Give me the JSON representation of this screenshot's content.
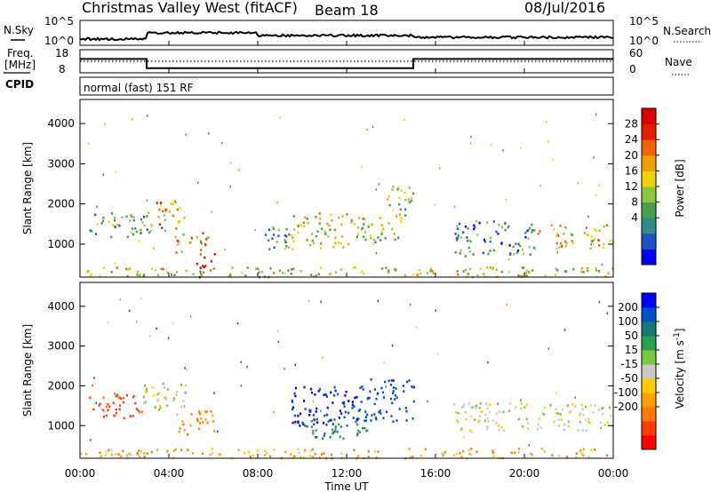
{
  "header": {
    "station": "Christmas Valley West (fitACF)",
    "beam": "Beam 18",
    "date": "08/Jul/2016"
  },
  "top_panels": {
    "nsky_label": "N.Sky",
    "nsky_ticks": [
      "10^5",
      "10^0"
    ],
    "nsearch_label": "N.Search",
    "nsearch_ticks": [
      "10^5",
      "10^0"
    ],
    "freq_label": [
      "Freq.",
      "[MHz]"
    ],
    "freq_ticks": [
      "18",
      "8"
    ],
    "nave_label": "Nave",
    "nave_ticks": [
      "60",
      "0"
    ],
    "cpid_label": "CPID",
    "cpid_text": "normal (fast) 151 RF"
  },
  "axes": {
    "ylabel": "Slant Range [km]",
    "yticks": [
      "4000",
      "3000",
      "2000",
      "1000"
    ],
    "xlabel": "Time UT",
    "xticks": [
      "00:00",
      "04:00",
      "08:00",
      "12:00",
      "16:00",
      "20:00",
      "00:00"
    ]
  },
  "colorbars": {
    "power": {
      "label": "Power [dB]",
      "ticks": [
        "28",
        "24",
        "20",
        "16",
        "12",
        "8",
        "4"
      ],
      "colors": [
        "#0000ff",
        "#1e50c8",
        "#2e8b8b",
        "#46a046",
        "#8cc83c",
        "#f0d200",
        "#f0a000",
        "#f06400",
        "#e61e00",
        "#dc0000"
      ]
    },
    "velocity": {
      "label": "Velocity [m s",
      "label_sup": "-1",
      "label_end": "]",
      "ticks": [
        "200",
        "100",
        "50",
        "15",
        "-15",
        "-50",
        "-100",
        "-200"
      ],
      "colors": [
        "#ff0000",
        "#ff3c00",
        "#ff7800",
        "#ffa000",
        "#ffcc00",
        "#c8c8c8",
        "#78c83c",
        "#28a050",
        "#147878",
        "#0050c8",
        "#0000ff"
      ]
    }
  },
  "chart_data": {
    "type": "heatmap",
    "title": "Christmas Valley West (fitACF) Beam 18 08/Jul/2016",
    "xlabel": "Time UT",
    "ylabel": "Slant Range [km]",
    "xlim": [
      0,
      24
    ],
    "ylim": [
      180,
      4600
    ],
    "grid": false,
    "frequency_mhz": [
      {
        "t0": 0,
        "t1": 3,
        "value": 14
      },
      {
        "t0": 3,
        "t1": 15,
        "value": 10
      },
      {
        "t0": 15,
        "t1": 24,
        "value": 14
      }
    ],
    "nave": 30,
    "power_regions": [
      {
        "t": [
          0.4,
          3.2
        ],
        "r": [
          1200,
          1800
        ],
        "db": 10
      },
      {
        "t": [
          2.8,
          4.8
        ],
        "r": [
          1400,
          2100
        ],
        "db": 20
      },
      {
        "t": [
          4.2,
          6.0
        ],
        "r": [
          800,
          1400
        ],
        "db": 18
      },
      {
        "t": [
          5.2,
          6.1
        ],
        "r": [
          200,
          800
        ],
        "db": 24
      },
      {
        "t": [
          8.3,
          9.5
        ],
        "r": [
          900,
          1500
        ],
        "db": 10
      },
      {
        "t": [
          9.5,
          12.0
        ],
        "r": [
          900,
          1800
        ],
        "db": 16
      },
      {
        "t": [
          12.0,
          14.5
        ],
        "r": [
          1000,
          1700
        ],
        "db": 14
      },
      {
        "t": [
          13.8,
          15.0
        ],
        "r": [
          1700,
          2500
        ],
        "db": 14
      },
      {
        "t": [
          16.8,
          20.5
        ],
        "r": [
          700,
          1600
        ],
        "db": 8
      },
      {
        "t": [
          20.5,
          24.0
        ],
        "r": [
          900,
          1500
        ],
        "db": 18
      },
      {
        "t": [
          0,
          24
        ],
        "r": [
          200,
          450
        ],
        "db": 16
      }
    ],
    "velocity_regions": [
      {
        "t": [
          0.4,
          2.8
        ],
        "r": [
          1200,
          1800
        ],
        "v": -120
      },
      {
        "t": [
          2.8,
          4.8
        ],
        "r": [
          1400,
          2100
        ],
        "v": 0
      },
      {
        "t": [
          4.4,
          6.0
        ],
        "r": [
          800,
          1400
        ],
        "v": -60
      },
      {
        "t": [
          9.5,
          12.5
        ],
        "r": [
          1000,
          2000
        ],
        "v": 210
      },
      {
        "t": [
          10.0,
          13.0
        ],
        "r": [
          700,
          1200
        ],
        "v": 60
      },
      {
        "t": [
          12.5,
          15.0
        ],
        "r": [
          1100,
          2200
        ],
        "v": 150
      },
      {
        "t": [
          16.8,
          24.0
        ],
        "r": [
          900,
          1600
        ],
        "v": 0
      },
      {
        "t": [
          0,
          24
        ],
        "r": [
          200,
          450
        ],
        "v": -40
      }
    ]
  }
}
